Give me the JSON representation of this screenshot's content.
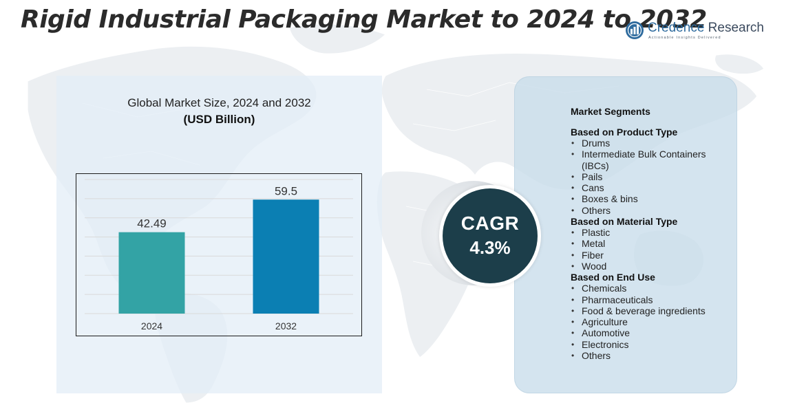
{
  "page_title": "Rigid Industrial Packaging Market to 2024 to 2032",
  "brand": {
    "name_part1": "Credence",
    "name_part2": " Research",
    "tagline": "Actionable Insights Delivered",
    "logo_icon": "globe-logo-icon",
    "color_primary": "#2e6b9e",
    "color_secondary": "#3b4a5e"
  },
  "chart_data": {
    "type": "bar",
    "title": "Global Market Size,  2024 and 2032",
    "subtitle": "(USD Billion)",
    "categories": [
      "2024",
      "2032"
    ],
    "values": [
      42.49,
      59.5
    ],
    "value_labels": [
      "42.49",
      "59.5"
    ],
    "colors": [
      "#33a3a5",
      "#0b7fb3"
    ],
    "ylim": [
      0,
      70
    ],
    "grid": true,
    "legend": "none"
  },
  "cagr": {
    "label": "CAGR",
    "value": "4.3%"
  },
  "segments": {
    "heading": "Market Segments",
    "groups": [
      {
        "title": "Based on Product Type",
        "items": [
          "Drums",
          "Intermediate Bulk Containers (IBCs)",
          "Pails",
          "Cans",
          "Boxes & bins",
          "Others"
        ]
      },
      {
        "title": "Based on Material Type",
        "items": [
          "Plastic",
          "Metal",
          "Fiber",
          "Wood"
        ]
      },
      {
        "title": "Based on End Use",
        "items": [
          "Chemicals",
          "Pharmaceuticals",
          "Food & beverage ingredients",
          "Agriculture",
          "Automotive",
          "Electronics",
          "Others"
        ]
      }
    ]
  },
  "colors": {
    "left_panel_bg": "#e2edf7",
    "right_panel_bg": "#c8ddeb",
    "cagr_circle": "#1c3e4a",
    "map": "#e9edf1"
  }
}
